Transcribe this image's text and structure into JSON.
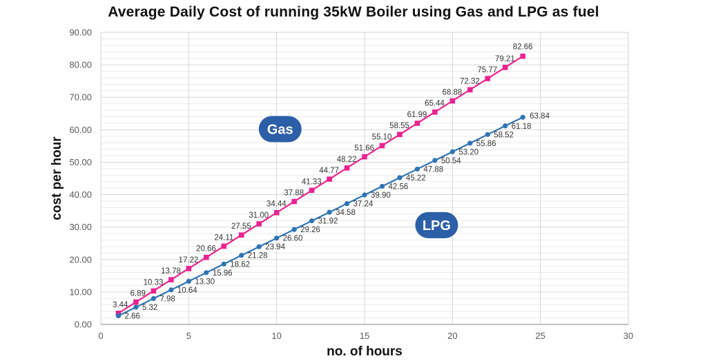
{
  "chart_data": {
    "type": "line",
    "title": "Average Daily Cost of running 35kW Boiler using Gas and LPG as fuel",
    "xlabel": "no. of hours",
    "ylabel": "cost per hour",
    "xlim": [
      0,
      30
    ],
    "ylim": [
      0,
      90
    ],
    "x_ticks": [
      0,
      5,
      10,
      15,
      20,
      25,
      30
    ],
    "y_tick_step": 10,
    "y_minor_step": 2,
    "grid": "on",
    "legend": "inline-badges",
    "x": [
      1,
      2,
      3,
      4,
      5,
      6,
      7,
      8,
      9,
      10,
      11,
      12,
      13,
      14,
      15,
      16,
      17,
      18,
      19,
      20,
      21,
      22,
      23,
      24
    ],
    "series": [
      {
        "name": "Gas",
        "color": "#EB2290",
        "marker": "square",
        "values": [
          3.44,
          6.89,
          10.33,
          13.78,
          17.22,
          20.66,
          24.11,
          27.55,
          31.0,
          34.44,
          37.88,
          41.33,
          44.77,
          48.22,
          51.66,
          55.1,
          58.55,
          61.99,
          65.44,
          68.88,
          72.32,
          75.77,
          79.21,
          82.66
        ]
      },
      {
        "name": "LPG",
        "color": "#2E74B5",
        "marker": "circle",
        "values": [
          2.66,
          5.32,
          7.98,
          10.64,
          13.3,
          15.96,
          18.62,
          21.28,
          23.94,
          26.6,
          29.26,
          31.92,
          34.58,
          37.24,
          39.9,
          42.56,
          45.22,
          47.88,
          50.54,
          53.2,
          55.86,
          58.52,
          61.18,
          63.84
        ]
      }
    ],
    "annotations": [
      {
        "text": "Gas",
        "x": 10.2,
        "y": 60.2,
        "bg": "#2D5FA8",
        "fg": "#ffffff"
      },
      {
        "text": "LPG",
        "x": 19.1,
        "y": 30.6,
        "bg": "#2D5FA8",
        "fg": "#ffffff"
      }
    ],
    "colors": {
      "grid_minor": "#eaeaea",
      "grid_major": "#d6d6d6",
      "axis": "#9e9e9e",
      "tick_label": "#595959",
      "data_label": "#363636",
      "title": "#111111"
    }
  }
}
